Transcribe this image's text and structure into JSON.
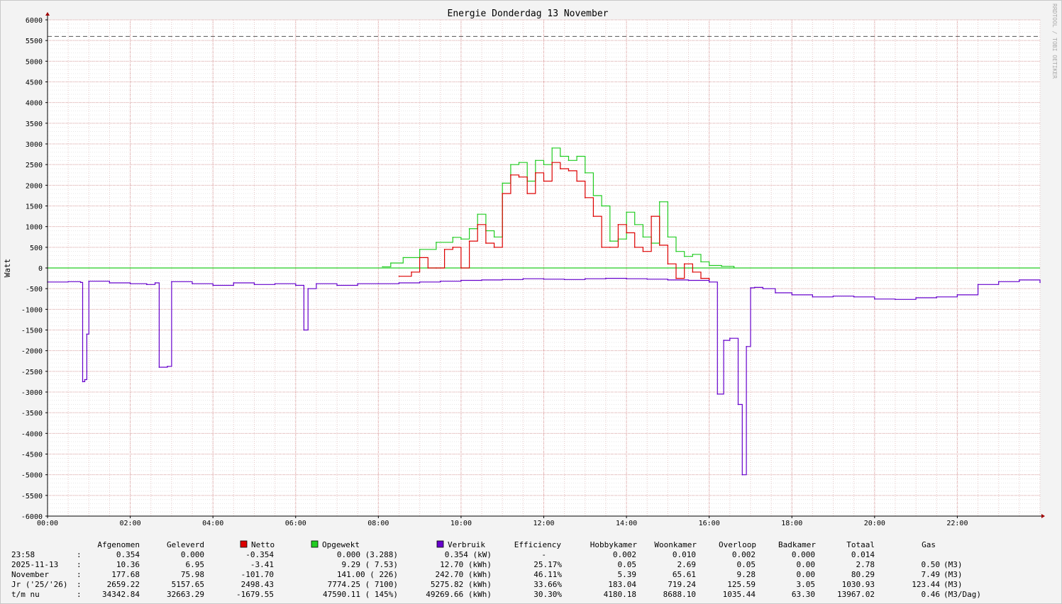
{
  "chart_data": {
    "type": "line",
    "title": "Energie Donderdag 13 November",
    "ylabel": "Watt",
    "xlabel": "",
    "xlim": [
      0,
      24
    ],
    "ylim": [
      -6000,
      6000
    ],
    "yticks": [
      6000,
      5500,
      5000,
      4500,
      4000,
      3500,
      3000,
      2500,
      2000,
      1500,
      1000,
      500,
      0,
      -500,
      -1000,
      -1500,
      -2000,
      -2500,
      -3000,
      -3500,
      -4000,
      -4500,
      -5000,
      -5500,
      -6000
    ],
    "xticks": [
      {
        "v": 0,
        "label": "00:00"
      },
      {
        "v": 2,
        "label": "02:00"
      },
      {
        "v": 4,
        "label": "04:00"
      },
      {
        "v": 6,
        "label": "06:00"
      },
      {
        "v": 8,
        "label": "08:00"
      },
      {
        "v": 10,
        "label": "10:00"
      },
      {
        "v": 12,
        "label": "12:00"
      },
      {
        "v": 14,
        "label": "14:00"
      },
      {
        "v": 16,
        "label": "16:00"
      },
      {
        "v": 18,
        "label": "18:00"
      },
      {
        "v": 20,
        "label": "20:00"
      },
      {
        "v": 22,
        "label": "22:00"
      }
    ],
    "grid": true,
    "limit_line": {
      "value": 5600,
      "style": "dashed"
    },
    "watermark": "RRDTOOL / TOBI OETIKER",
    "series": [
      {
        "name": "Opgewekt",
        "color": "#22cc22",
        "x": [
          8.1,
          8.3,
          8.6,
          9.0,
          9.4,
          9.8,
          10.0,
          10.2,
          10.4,
          10.6,
          10.8,
          11.0,
          11.2,
          11.4,
          11.6,
          11.8,
          12.0,
          12.2,
          12.4,
          12.6,
          12.8,
          13.0,
          13.2,
          13.4,
          13.6,
          13.8,
          14.0,
          14.2,
          14.4,
          14.6,
          14.8,
          15.0,
          15.2,
          15.4,
          15.6,
          15.8,
          16.0,
          16.3,
          16.6
        ],
        "y": [
          30,
          120,
          250,
          450,
          620,
          740,
          700,
          950,
          1300,
          900,
          750,
          2050,
          2500,
          2550,
          2100,
          2600,
          2500,
          2900,
          2700,
          2600,
          2700,
          2300,
          1750,
          1500,
          650,
          700,
          1350,
          1050,
          750,
          600,
          1600,
          750,
          400,
          280,
          330,
          150,
          60,
          40,
          20
        ]
      },
      {
        "name": "Netto",
        "color": "#dd0000",
        "x": [
          8.5,
          8.8,
          9.0,
          9.2,
          9.4,
          9.6,
          9.8,
          10.0,
          10.2,
          10.4,
          10.6,
          10.8,
          11.0,
          11.2,
          11.4,
          11.6,
          11.8,
          12.0,
          12.2,
          12.4,
          12.6,
          12.8,
          13.0,
          13.2,
          13.4,
          13.6,
          13.8,
          14.0,
          14.2,
          14.4,
          14.6,
          14.8,
          15.0,
          15.2,
          15.4,
          15.6,
          15.8,
          16.0
        ],
        "y": [
          -200,
          -100,
          250,
          0,
          0,
          450,
          500,
          0,
          650,
          1050,
          600,
          500,
          1800,
          2250,
          2200,
          1800,
          2300,
          2100,
          2550,
          2400,
          2350,
          2100,
          1700,
          1250,
          500,
          500,
          1050,
          850,
          500,
          400,
          1250,
          550,
          100,
          -250,
          100,
          -100,
          -250,
          -280
        ]
      },
      {
        "name": "Verbruik",
        "color": "#6600cc",
        "x": [
          0.0,
          0.5,
          0.8,
          0.85,
          0.9,
          0.95,
          1.0,
          1.5,
          2.0,
          2.4,
          2.6,
          2.7,
          2.9,
          3.0,
          3.5,
          4.0,
          4.5,
          5.0,
          5.5,
          6.0,
          6.2,
          6.3,
          6.5,
          7.0,
          7.5,
          8.0,
          8.5,
          9.0,
          9.5,
          10.0,
          10.5,
          11.0,
          11.5,
          12.0,
          12.5,
          13.0,
          13.5,
          14.0,
          14.5,
          15.0,
          15.5,
          16.0,
          16.2,
          16.35,
          16.5,
          16.7,
          16.8,
          16.9,
          17.0,
          17.1,
          17.3,
          17.6,
          18.0,
          18.5,
          19.0,
          19.5,
          20.0,
          20.5,
          21.0,
          21.5,
          22.0,
          22.5,
          23.0,
          23.5,
          24.0
        ],
        "y": [
          -340,
          -330,
          -350,
          -2750,
          -2700,
          -1600,
          -320,
          -360,
          -380,
          -400,
          -360,
          -2400,
          -2380,
          -330,
          -380,
          -420,
          -360,
          -400,
          -380,
          -420,
          -1500,
          -500,
          -380,
          -420,
          -380,
          -380,
          -360,
          -340,
          -320,
          -300,
          -290,
          -280,
          -260,
          -270,
          -280,
          -260,
          -250,
          -260,
          -270,
          -290,
          -300,
          -340,
          -3050,
          -1750,
          -1700,
          -3300,
          -5000,
          -1900,
          -480,
          -470,
          -500,
          -600,
          -650,
          -700,
          -680,
          -700,
          -750,
          -760,
          -720,
          -700,
          -650,
          -400,
          -330,
          -290,
          -350
        ]
      }
    ]
  },
  "legend_table": {
    "headers": [
      "Afgenomen",
      "Geleverd",
      "Netto",
      "Opgewekt",
      "Verbruik",
      "Efficiency",
      "Hobbykamer",
      "Woonkamer",
      "Overloop",
      "Badkamer",
      "Totaal",
      "Gas"
    ],
    "colors": {
      "Netto": "#dd0000",
      "Opgewekt": "#22cc22",
      "Verbruik": "#6600cc"
    },
    "rows": [
      {
        "label": "23:58",
        "sep": ":",
        "cells": [
          "0.354",
          "0.000",
          "-0.354",
          "0.000 (3.288)",
          "0.354 (kW)",
          "-",
          "0.002",
          "0.010",
          "0.002",
          "0.000",
          "0.014",
          ""
        ]
      },
      {
        "label": "2025-11-13",
        "sep": ":",
        "cells": [
          "10.36",
          "6.95",
          "-3.41",
          "9.29 ( 7.53)",
          "12.70 (kWh)",
          "25.17%",
          "0.05",
          "2.69",
          "0.05",
          "0.00",
          "2.78",
          "0.50 (M3)"
        ]
      },
      {
        "label": "November",
        "sep": ":",
        "cells": [
          "177.68",
          "75.98",
          "-101.70",
          "141.00 (  226)",
          "242.70 (kWh)",
          "46.11%",
          "5.39",
          "65.61",
          "9.28",
          "0.00",
          "80.29",
          "7.49 (M3)"
        ]
      },
      {
        "label": "Jr ('25/'26)",
        "sep": ":",
        "cells": [
          "2659.22",
          "5157.65",
          "2498.43",
          "7774.25 ( 7100)",
          "5275.82 (kWh)",
          "33.66%",
          "183.04",
          "719.24",
          "125.59",
          "3.05",
          "1030.93",
          "123.44 (M3)"
        ]
      },
      {
        "label": "t/m nu",
        "sep": ":",
        "cells": [
          "34342.84",
          "32663.29",
          "-1679.55",
          "47590.11 ( 145%)",
          "49269.66 (kWh)",
          "30.30%",
          "4180.18",
          "8688.10",
          "1035.44",
          "63.30",
          "13967.02",
          "0.46 (M3/Dag)"
        ]
      }
    ]
  }
}
